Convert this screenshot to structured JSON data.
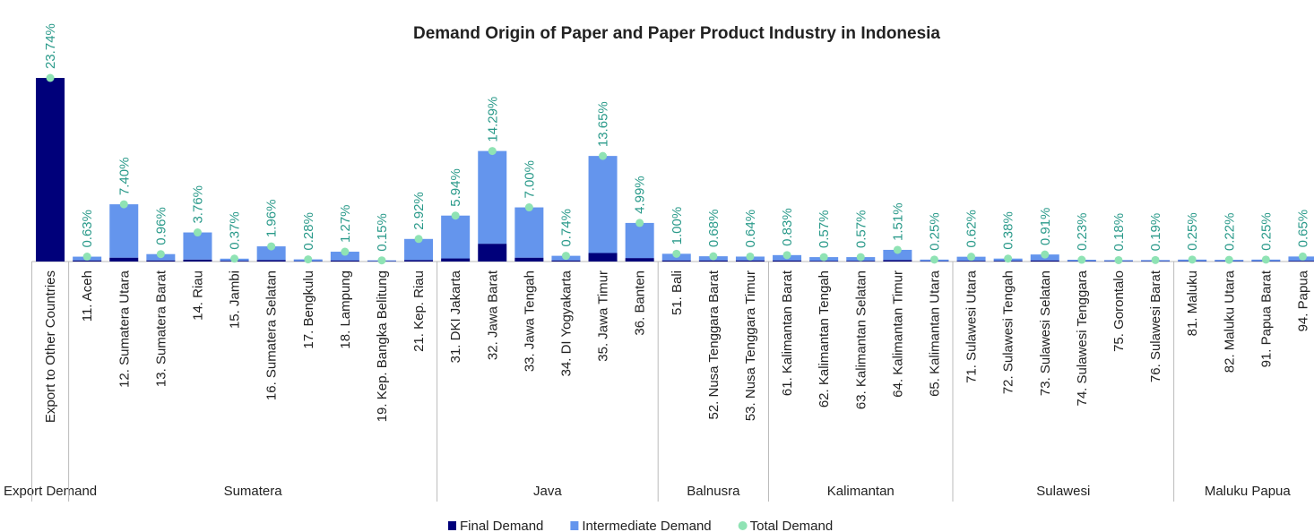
{
  "chart_data": {
    "type": "stacked_bar",
    "title": "Demand Origin of Paper and Paper Product Industry in Indonesia",
    "categories": [
      "Export to Other Countries",
      "11. Aceh",
      "12. Sumatera Utara",
      "13. Sumatera Barat",
      "14. Riau",
      "15. Jambi",
      "16. Sumatera Selatan",
      "17. Bengkulu",
      "18. Lampung",
      "19. Kep. Bangka Belitung",
      "21. Kep. Riau",
      "31. DKI Jakarta",
      "32. Jawa Barat",
      "33. Jawa Tengah",
      "34. DI Yogyakarta",
      "35. Jawa Timur",
      "36. Banten",
      "51. Bali",
      "52. Nusa Tenggara Barat",
      "53. Nusa Tenggara Timur",
      "61. Kalimantan Barat",
      "62. Kalimantan Tengah",
      "63. Kalimantan Selatan",
      "64. Kalimantan Timur",
      "65. Kalimantan Utara",
      "71. Sulawesi Utara",
      "72. Sulawesi Tengah",
      "73. Sulawesi Selatan",
      "74. Sulawesi Tenggara",
      "75. Gorontalo",
      "76. Sulawesi Barat",
      "81. Maluku",
      "82. Maluku Utara",
      "91. Papua Barat",
      "94. Papua"
    ],
    "category_groups": [
      "Export Demand",
      "Sumatera",
      "Sumatera",
      "Sumatera",
      "Sumatera",
      "Sumatera",
      "Sumatera",
      "Sumatera",
      "Sumatera",
      "Sumatera",
      "Sumatera",
      "Java",
      "Java",
      "Java",
      "Java",
      "Java",
      "Java",
      "Balnusra",
      "Balnusra",
      "Balnusra",
      "Kalimantan",
      "Kalimantan",
      "Kalimantan",
      "Kalimantan",
      "Kalimantan",
      "Sulawesi",
      "Sulawesi",
      "Sulawesi",
      "Sulawesi",
      "Sulawesi",
      "Sulawesi",
      "Maluku Papua",
      "Maluku Papua",
      "Maluku Papua",
      "Maluku Papua"
    ],
    "series": [
      {
        "name": "Final Demand",
        "color": "#00007a",
        "values": [
          23.74,
          0.15,
          0.5,
          0.15,
          0.25,
          0.1,
          0.2,
          0.05,
          0.15,
          0.05,
          0.2,
          0.4,
          2.3,
          0.5,
          0.15,
          1.1,
          0.45,
          0.15,
          0.15,
          0.15,
          0.15,
          0.1,
          0.1,
          0.2,
          0.05,
          0.1,
          0.1,
          0.15,
          0.05,
          0.05,
          0.05,
          0.05,
          0.05,
          0.05,
          0.1
        ]
      },
      {
        "name": "Intermediate Demand",
        "color": "#6495ed",
        "values": [
          0,
          0.48,
          6.9,
          0.81,
          3.51,
          0.27,
          1.76,
          0.23,
          1.12,
          0.1,
          2.72,
          5.54,
          11.99,
          6.5,
          0.59,
          12.55,
          4.54,
          0.85,
          0.53,
          0.49,
          0.68,
          0.47,
          0.47,
          1.31,
          0.2,
          0.52,
          0.28,
          0.76,
          0.18,
          0.13,
          0.14,
          0.2,
          0.17,
          0.2,
          0.55
        ]
      },
      {
        "name": "Total Demand",
        "color": "#8fe3b4",
        "marker": "circle",
        "values": [
          23.74,
          0.63,
          7.4,
          0.96,
          3.76,
          0.37,
          1.96,
          0.28,
          1.27,
          0.15,
          2.92,
          5.94,
          14.29,
          7.0,
          0.74,
          13.65,
          4.99,
          1.0,
          0.68,
          0.64,
          0.83,
          0.57,
          0.57,
          1.51,
          0.25,
          0.62,
          0.38,
          0.91,
          0.23,
          0.18,
          0.19,
          0.25,
          0.22,
          0.25,
          0.65
        ],
        "value_labels": [
          "23.74%",
          "0.63%",
          "7.40%",
          "0.96%",
          "3.76%",
          "0.37%",
          "1.96%",
          "0.28%",
          "1.27%",
          "0.15%",
          "2.92%",
          "5.94%",
          "14.29%",
          "7.00%",
          "0.74%",
          "13.65%",
          "4.99%",
          "1.00%",
          "0.68%",
          "0.64%",
          "0.83%",
          "0.57%",
          "0.57%",
          "1.51%",
          "0.25%",
          "0.62%",
          "0.38%",
          "0.91%",
          "0.23%",
          "0.18%",
          "0.19%",
          "0.25%",
          "0.22%",
          "0.25%",
          "0.65%"
        ]
      }
    ],
    "legend": "bottom"
  }
}
